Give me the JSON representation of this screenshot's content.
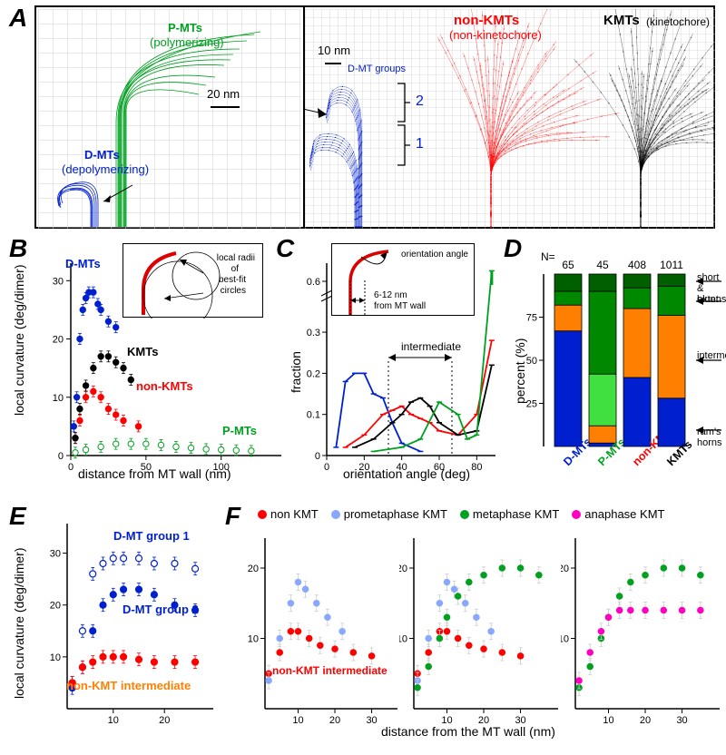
{
  "colors": {
    "dmt": "#0020d0",
    "pmt": "#00a020",
    "pmt_light": "#40e040",
    "nonkmt": "#ff0000",
    "kmt": "#000000",
    "orange": "#ff8000",
    "lightblue": "#88a8ff",
    "magenta": "#ff00c0",
    "grid": "#d0d0d0"
  },
  "A": {
    "letter": "A",
    "pmt_label": "P-MTs",
    "pmt_sub": "(polymerizing)",
    "dmt_label": "D-MTs",
    "dmt_sub": "(depolymerizing)",
    "nonkmt_label": "non-KMTs",
    "nonkmt_sub": "(non-kinetochore)",
    "kmt_label": "KMTs",
    "kmt_sub": "(kinetochore)",
    "scale1": "20 nm",
    "scale2": "10 nm",
    "dmt_groups": "D-MT groups",
    "g1": "1",
    "g2": "2"
  },
  "B": {
    "letter": "B",
    "ylabel": "local curvature (deg/dimer)",
    "xlabel": "distance from MT wall (nm)",
    "yticks": [
      0,
      10,
      20,
      30
    ],
    "xticks": [
      0,
      50,
      100
    ],
    "ymax": 33,
    "xmax": 140,
    "dmt_txt": "D-MTs",
    "kmt_txt": "KMTs",
    "nonkmt_txt": "non-KMTs",
    "pmt_txt": "P-MTs",
    "inset_label1": "local radii",
    "inset_label2": "of",
    "inset_label3": "best-fit",
    "inset_label4": "circles",
    "dmt_data": [
      [
        2,
        5
      ],
      [
        4,
        10
      ],
      [
        6,
        20
      ],
      [
        8,
        25
      ],
      [
        10,
        27
      ],
      [
        12,
        28
      ],
      [
        15,
        28
      ],
      [
        18,
        26
      ],
      [
        20,
        25
      ],
      [
        25,
        23
      ],
      [
        30,
        22
      ]
    ],
    "kmt_data": [
      [
        3,
        3
      ],
      [
        6,
        8
      ],
      [
        10,
        12
      ],
      [
        15,
        15
      ],
      [
        20,
        17
      ],
      [
        25,
        17
      ],
      [
        30,
        16
      ],
      [
        35,
        15
      ],
      [
        40,
        13
      ]
    ],
    "nonkmt_data": [
      [
        3,
        3
      ],
      [
        6,
        6
      ],
      [
        10,
        10
      ],
      [
        15,
        11
      ],
      [
        20,
        10
      ],
      [
        25,
        8
      ],
      [
        30,
        7
      ],
      [
        35,
        6
      ],
      [
        45,
        5
      ]
    ],
    "pmt_data": [
      [
        3,
        0.5
      ],
      [
        10,
        1
      ],
      [
        20,
        1.5
      ],
      [
        30,
        2
      ],
      [
        40,
        2
      ],
      [
        50,
        2
      ],
      [
        60,
        1.8
      ],
      [
        70,
        1.5
      ],
      [
        80,
        1.3
      ],
      [
        90,
        1.1
      ],
      [
        100,
        1
      ],
      [
        110,
        0.9
      ],
      [
        120,
        0.8
      ]
    ]
  },
  "C": {
    "letter": "C",
    "ylabel": "fraction",
    "xlabel": "orientation angle (deg)",
    "yticks": [
      0,
      0.1,
      0.2,
      0.3,
      0.6
    ],
    "xticks": [
      0,
      20,
      40,
      60,
      80
    ],
    "intermediate": "intermediate",
    "inset_label1": "orientation angle",
    "inset_label2": "6-12 nm",
    "inset_label3": "from MT wall",
    "dmt_data": [
      [
        5,
        0.02
      ],
      [
        10,
        0.18
      ],
      [
        15,
        0.2
      ],
      [
        20,
        0.2
      ],
      [
        25,
        0.15
      ],
      [
        30,
        0.14
      ],
      [
        35,
        0.08
      ],
      [
        40,
        0.03
      ],
      [
        50,
        0.01
      ]
    ],
    "nonkmt_data": [
      [
        10,
        0.02
      ],
      [
        20,
        0.05
      ],
      [
        30,
        0.1
      ],
      [
        35,
        0.11
      ],
      [
        40,
        0.12
      ],
      [
        45,
        0.1
      ],
      [
        50,
        0.09
      ],
      [
        55,
        0.08
      ],
      [
        60,
        0.06
      ],
      [
        70,
        0.05
      ],
      [
        80,
        0.1
      ],
      [
        88,
        0.28
      ]
    ],
    "kmt_data": [
      [
        15,
        0.02
      ],
      [
        25,
        0.04
      ],
      [
        35,
        0.08
      ],
      [
        40,
        0.1
      ],
      [
        45,
        0.13
      ],
      [
        50,
        0.14
      ],
      [
        55,
        0.12
      ],
      [
        60,
        0.08
      ],
      [
        70,
        0.05
      ],
      [
        80,
        0.06
      ],
      [
        88,
        0.22
      ]
    ],
    "pmt_data": [
      [
        25,
        0.01
      ],
      [
        40,
        0.02
      ],
      [
        50,
        0.04
      ],
      [
        60,
        0.13
      ],
      [
        70,
        0.1
      ],
      [
        75,
        0.04
      ],
      [
        80,
        0.05
      ],
      [
        88,
        0.6
      ]
    ]
  },
  "D": {
    "letter": "D",
    "ylabel": "percent (%)",
    "yticks": [
      25,
      50,
      75
    ],
    "N": "N=",
    "Ns": [
      "65",
      "45",
      "408",
      "1011"
    ],
    "cats": [
      "D-MTs",
      "P-MTs",
      "non-KMTs",
      "KMTs"
    ],
    "cat_colors": [
      "#0020d0",
      "#00a020",
      "#ff0000",
      "#000000"
    ],
    "side_labels": [
      "short & blunt",
      "extensions",
      "intermediate",
      "ram's horns"
    ],
    "bars": [
      {
        "rh": 67,
        "int": 15,
        "ext": 8,
        "sb": 10
      },
      {
        "rh": 2,
        "int": 10,
        "light": 30,
        "ext": 48,
        "sb": 10
      },
      {
        "rh": 40,
        "int": 40,
        "ext": 12,
        "sb": 8
      },
      {
        "rh": 28,
        "int": 48,
        "ext": 17,
        "sb": 7
      }
    ]
  },
  "E": {
    "letter": "E",
    "ylabel": "local curvature (deg/dimer)",
    "xlabel_shared": "distance from the MT wall (nm)",
    "yticks": [
      10,
      20,
      30
    ],
    "xticks": [
      10,
      20
    ],
    "g1_txt": "D-MT group 1",
    "g2_txt": "D-MT group 2",
    "ni_txt": "non-KMT intermediate",
    "g1_data": [
      [
        2,
        5
      ],
      [
        4,
        15
      ],
      [
        6,
        26
      ],
      [
        8,
        28
      ],
      [
        10,
        29
      ],
      [
        12,
        29
      ],
      [
        15,
        29
      ],
      [
        18,
        28
      ],
      [
        22,
        28
      ],
      [
        26,
        27
      ]
    ],
    "g2_data": [
      [
        2,
        4
      ],
      [
        4,
        8
      ],
      [
        6,
        15
      ],
      [
        8,
        20
      ],
      [
        10,
        22
      ],
      [
        12,
        23
      ],
      [
        15,
        23
      ],
      [
        18,
        22
      ],
      [
        22,
        20
      ],
      [
        26,
        19
      ]
    ],
    "ni_data": [
      [
        2,
        5
      ],
      [
        4,
        8
      ],
      [
        6,
        9
      ],
      [
        8,
        10
      ],
      [
        10,
        10
      ],
      [
        12,
        10
      ],
      [
        15,
        9.5
      ],
      [
        18,
        9
      ],
      [
        22,
        9
      ],
      [
        26,
        9
      ]
    ]
  },
  "F": {
    "letter": "F",
    "yticks": [
      10,
      20
    ],
    "xticks": [
      10,
      20,
      30
    ],
    "legend": [
      "non KMT",
      "prometaphase KMT",
      "metaphase KMT",
      "anaphase KMT"
    ],
    "legend_colors": [
      "#ff0000",
      "#88a8ff",
      "#00a020",
      "#ff00c0"
    ],
    "ni_txt": "non-KMT intermediate",
    "non_data": [
      [
        2,
        5
      ],
      [
        5,
        8
      ],
      [
        8,
        11
      ],
      [
        10,
        11
      ],
      [
        13,
        10
      ],
      [
        16,
        9
      ],
      [
        20,
        8.5
      ],
      [
        25,
        8
      ],
      [
        30,
        7.5
      ]
    ],
    "pro_data": [
      [
        2,
        4
      ],
      [
        5,
        10
      ],
      [
        8,
        15
      ],
      [
        10,
        18
      ],
      [
        12,
        17
      ],
      [
        15,
        15
      ],
      [
        18,
        13
      ],
      [
        22,
        11
      ]
    ],
    "met_data": [
      [
        2,
        3
      ],
      [
        5,
        6
      ],
      [
        8,
        10
      ],
      [
        10,
        13
      ],
      [
        13,
        16
      ],
      [
        16,
        18
      ],
      [
        20,
        19
      ],
      [
        25,
        20
      ],
      [
        30,
        20
      ],
      [
        35,
        19
      ]
    ],
    "ana_data": [
      [
        2,
        4
      ],
      [
        5,
        8
      ],
      [
        8,
        11
      ],
      [
        10,
        13
      ],
      [
        13,
        14
      ],
      [
        16,
        14
      ],
      [
        20,
        14
      ],
      [
        25,
        14
      ],
      [
        30,
        14
      ],
      [
        35,
        14
      ]
    ]
  }
}
